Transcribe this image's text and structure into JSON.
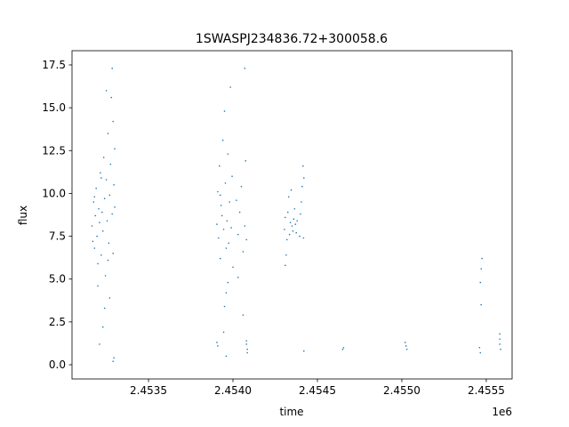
{
  "chart_data": {
    "type": "scatter",
    "title": "1SWASPJ234836.72+300058.6",
    "x_label": "time",
    "y_label": "flux",
    "x_offset_label": "1e6",
    "color": "#1f77b4",
    "xlim": [
      2453047,
      2455653
    ],
    "ylim": [
      -0.83,
      18.33
    ],
    "xticks": [
      {
        "value": 2453500,
        "label": "2.4535"
      },
      {
        "value": 2454000,
        "label": "2.4540"
      },
      {
        "value": 2454500,
        "label": "2.4545"
      },
      {
        "value": 2455000,
        "label": "2.4550"
      },
      {
        "value": 2455500,
        "label": "2.4555"
      }
    ],
    "yticks": [
      {
        "value": 0,
        "label": "0.0"
      },
      2.5,
      {
        "value": 5,
        "label": "5.0"
      },
      7.5,
      {
        "value": 10,
        "label": "10.0"
      },
      12.5,
      {
        "value": 15,
        "label": "15.0"
      },
      17.5
    ],
    "x": [
      2453165,
      2453170,
      2453175,
      2453180,
      2453185,
      2453190,
      2453195,
      2453200,
      2453205,
      2453210,
      2453215,
      2453220,
      2453225,
      2453230,
      2453235,
      2453240,
      2453245,
      2453250,
      2453255,
      2453260,
      2453265,
      2453270,
      2453275,
      2453280,
      2453285,
      2453290,
      2453295,
      2453300,
      2453200,
      2453240,
      2453230,
      2453210,
      2453290,
      2453295,
      2453285,
      2453250,
      2453270,
      2453260,
      2453220,
      2453180,
      2453290,
      2453300,
      2453905,
      2453910,
      2453915,
      2453920,
      2453925,
      2453930,
      2453935,
      2453940,
      2453945,
      2453950,
      2453955,
      2453960,
      2453965,
      2453970,
      2453975,
      2453980,
      2453985,
      2453990,
      2453995,
      2454000,
      2454020,
      2454030,
      2454040,
      2454050,
      2454060,
      2454070,
      2454075,
      2454080,
      2453950,
      2453960,
      2453945,
      2453960,
      2454060,
      2454070,
      2454030,
      2453925,
      2453970,
      2454305,
      2454310,
      2454315,
      2454320,
      2454325,
      2454330,
      2454335,
      2454340,
      2454345,
      2454350,
      2454355,
      2454360,
      2454365,
      2454370,
      2454375,
      2454380,
      2454395,
      2454400,
      2454405,
      2454410,
      2454415,
      2454418,
      2454310,
      2454420,
      2453905,
      2453910,
      2454080,
      2454085,
      2454085,
      2454080,
      2454420,
      2454650,
      2454655,
      2455020,
      2455025,
      2455030,
      2455460,
      2455465,
      2455470,
      2455470,
      2455475,
      2455580,
      2455580,
      2455585,
      2455580,
      2455465
    ],
    "values": [
      8.1,
      7.2,
      9.5,
      6.8,
      8.7,
      10.3,
      7.5,
      5.9,
      9.1,
      8.3,
      11.2,
      6.4,
      8.9,
      7.8,
      12.1,
      9.7,
      5.2,
      10.8,
      8.4,
      13.5,
      7.1,
      9.9,
      11.7,
      15.6,
      8.8,
      14.2,
      10.5,
      12.6,
      4.6,
      3.3,
      2.2,
      1.2,
      0.2,
      0.4,
      17.3,
      16.0,
      3.9,
      6.1,
      10.9,
      9.8,
      6.5,
      9.2,
      8.2,
      10.1,
      7.4,
      11.6,
      6.2,
      9.3,
      8.7,
      13.1,
      7.9,
      14.8,
      10.6,
      6.8,
      8.4,
      12.3,
      7.1,
      9.5,
      16.2,
      8.0,
      11.0,
      5.7,
      9.6,
      7.6,
      8.9,
      10.4,
      6.6,
      8.1,
      11.9,
      7.3,
      3.4,
      4.2,
      1.9,
      0.5,
      2.9,
      17.3,
      5.1,
      9.9,
      4.8,
      7.9,
      8.6,
      6.4,
      7.3,
      8.9,
      9.8,
      7.6,
      8.3,
      10.2,
      8.1,
      7.8,
      8.5,
      9.1,
      8.2,
      7.7,
      8.4,
      7.5,
      8.8,
      9.5,
      10.4,
      11.6,
      7.4,
      5.8,
      10.9,
      1.3,
      1.1,
      1.2,
      0.9,
      0.7,
      1.4,
      0.8,
      0.9,
      1.0,
      1.3,
      1.1,
      0.9,
      1.0,
      0.7,
      3.5,
      5.6,
      6.2,
      1.2,
      1.8,
      0.9,
      1.5,
      4.8
    ]
  }
}
